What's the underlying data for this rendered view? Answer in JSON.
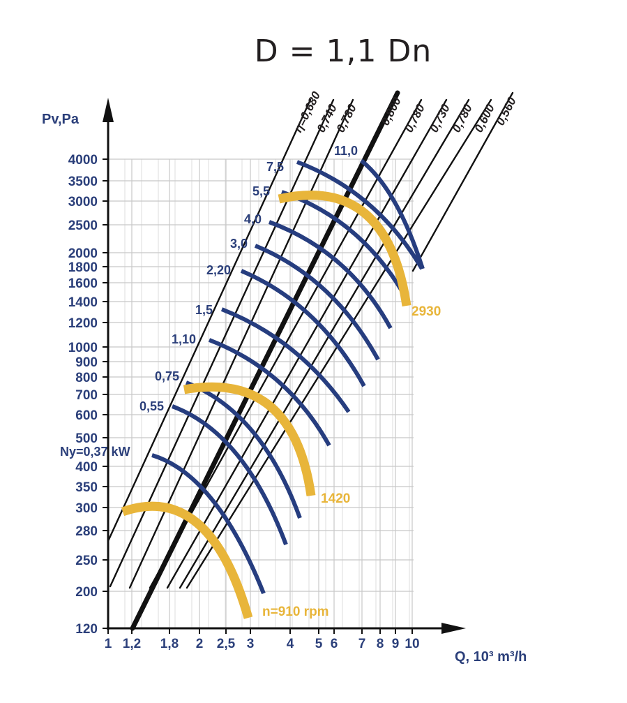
{
  "title": "D = 1,1 Dn",
  "chart_data": {
    "type": "line",
    "title": "D = 1,1 Dn",
    "xlabel": "Q, 10³ m³/h",
    "ylabel": "Pv,Pa",
    "x_scale": "log",
    "y_scale": "log",
    "grid": true,
    "xlim": [
      1,
      10
    ],
    "ylim": [
      120,
      4000
    ],
    "x_ticks": [
      "1",
      "1,2",
      "1,8",
      "2",
      "2,5",
      "3",
      "4",
      "5",
      "6",
      "7",
      "8",
      "9",
      "10"
    ],
    "y_ticks": [
      "120",
      "200",
      "250",
      "280",
      "300",
      "350",
      "400",
      "500",
      "600",
      "700",
      "800",
      "900",
      "1000",
      "1200",
      "1400",
      "1600",
      "1800",
      "2000",
      "2500",
      "3000",
      "3500",
      "4000"
    ],
    "efficiency_lines": [
      {
        "label": "η=0,680",
        "bold": false
      },
      {
        "label": "0,740",
        "bold": false
      },
      {
        "label": "0,780",
        "bold": false
      },
      {
        "label": "0,800",
        "bold": true
      },
      {
        "label": "0,780",
        "bold": false
      },
      {
        "label": "0,730",
        "bold": false
      },
      {
        "label": "0,780",
        "bold": false
      },
      {
        "label": "0,600",
        "bold": false
      },
      {
        "label": "0,560",
        "bold": false
      }
    ],
    "power_curves": [
      {
        "label": "Ny=0,37 kW"
      },
      {
        "label": "0,55"
      },
      {
        "label": "0,75"
      },
      {
        "label": "1,10"
      },
      {
        "label": "1,5"
      },
      {
        "label": "2,20"
      },
      {
        "label": "3,0"
      },
      {
        "label": "4,0"
      },
      {
        "label": "5,5"
      },
      {
        "label": "7,5"
      },
      {
        "label": "11,0"
      }
    ],
    "speed_curves": [
      {
        "label": "n=910 rpm"
      },
      {
        "label": "1420"
      },
      {
        "label": "2930"
      }
    ]
  },
  "colors": {
    "power": "#263d7f",
    "speed": "#e8b53a",
    "efficiency": "#111111",
    "grid": "#c8c8c8",
    "axis": "#111111",
    "text": "#2b3f7a"
  }
}
